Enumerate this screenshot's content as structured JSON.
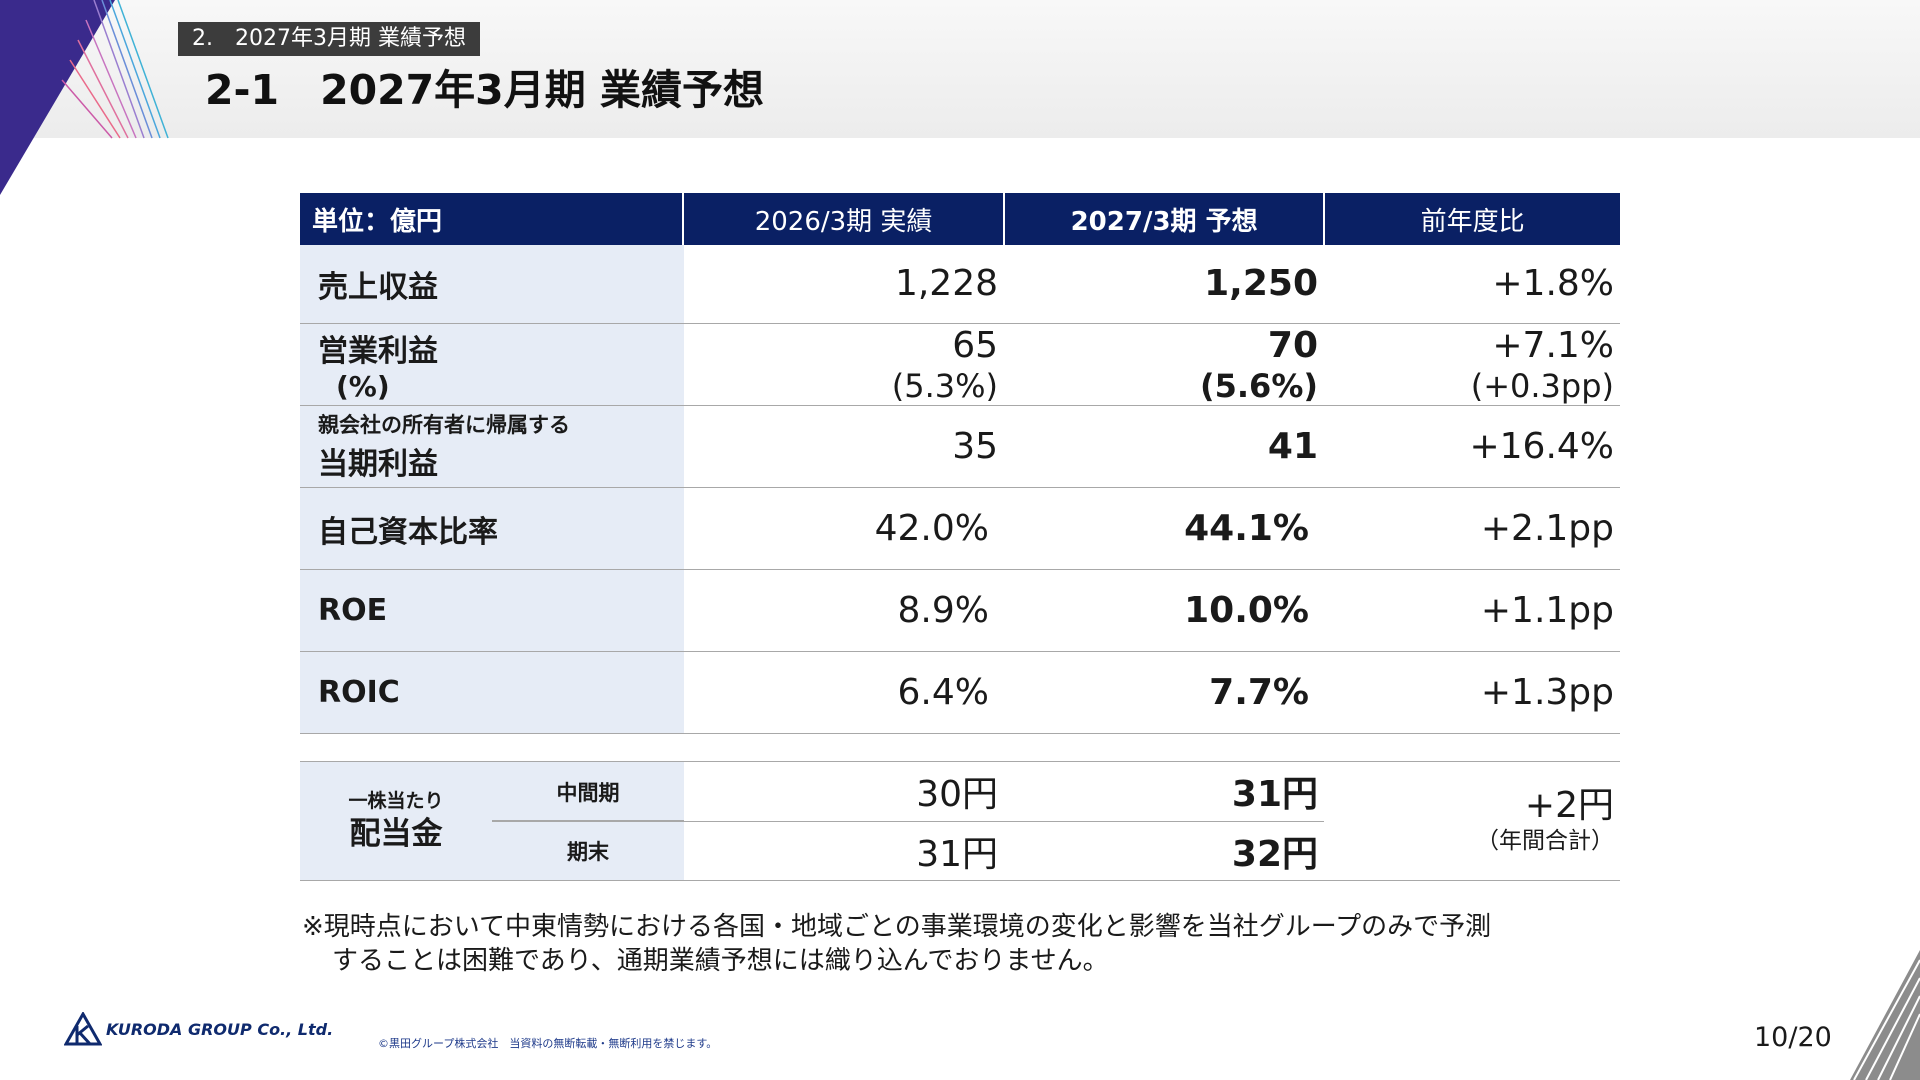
{
  "section_tag": "2.　2027年3月期 業績予想",
  "page_title": "2-1　2027年3月期 業績予想",
  "table": {
    "headers": {
      "unit": "単位：億円",
      "prev": "2026/3期 実績",
      "forecast": "2027/3期 予想",
      "ratio": "前年度比"
    },
    "rows": {
      "revenue": {
        "label": "売上収益",
        "prev": "1,228",
        "forecast": "1,250",
        "ratio": "+1.8%"
      },
      "op_profit": {
        "label": "営業利益",
        "label_sub": "(%)",
        "prev": "65",
        "prev_pct": "(5.3%)",
        "forecast": "70",
        "forecast_pct": "(5.6%)",
        "ratio": "+7.1%",
        "ratio_pct": "(+0.3pp)"
      },
      "net_profit": {
        "label_small": "親会社の所有者に帰属する",
        "label": "当期利益",
        "prev": "35",
        "forecast": "41",
        "ratio": "+16.4%"
      },
      "equity_ratio": {
        "label": "自己資本比率",
        "prev": "42.0%",
        "forecast": "44.1%",
        "ratio": "+2.1pp"
      },
      "roe": {
        "label": "ROE",
        "prev": "8.9%",
        "forecast": "10.0%",
        "ratio": "+1.1pp"
      },
      "roic": {
        "label": "ROIC",
        "prev": "6.4%",
        "forecast": "7.7%",
        "ratio": "+1.3pp"
      }
    }
  },
  "dividend": {
    "label_small": "一株当たり",
    "label": "配当金",
    "interim_label": "中間期",
    "yearend_label": "期末",
    "interim_prev": "30円",
    "interim_forecast": "31円",
    "yearend_prev": "31円",
    "yearend_forecast": "32円",
    "ratio": "+2円",
    "ratio_note": "（年間合計）"
  },
  "note": {
    "line1": "※現時点において中東情勢における各国・地域ごとの事業環境の変化と影響を当社グループのみで予測",
    "line2": "することは困難であり、通期業績予想には織り込んでおりません。"
  },
  "footer": {
    "brand": "KURODA GROUP Co., Ltd.",
    "copyright": "©黒田グループ株式会社　当資料の無断転載・無断利用を禁じます。",
    "page": "10/20"
  },
  "colors": {
    "header_navy": "#0a2064",
    "label_bg": "#e6ecf6",
    "tag_bg": "#3c3c3c"
  }
}
